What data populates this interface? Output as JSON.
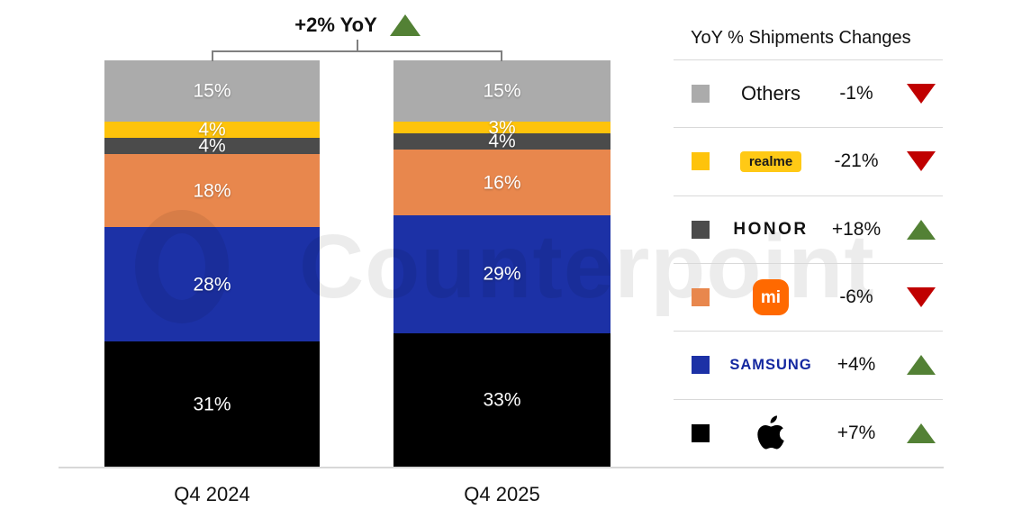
{
  "watermark": {
    "text": "Counterpoint"
  },
  "title": {
    "text": "+2% YoY",
    "direction": "up"
  },
  "colors": {
    "up": "#538135",
    "down": "#C00000",
    "divider": "#D9D9D9",
    "bracket": "#808080"
  },
  "legend": {
    "header": "YoY % Shipments Changes",
    "items": [
      {
        "name": "Others",
        "change": "-1%",
        "direction": "down",
        "swatch": "#ABABAB"
      },
      {
        "name": "realme",
        "change": "-21%",
        "direction": "down",
        "swatch": "#FEC30B",
        "badge_bg": "#FFC915"
      },
      {
        "name": "HONOR",
        "change": "+18%",
        "direction": "up",
        "swatch": "#4B4B4B"
      },
      {
        "name": "Xiaomi",
        "change": "-6%",
        "direction": "down",
        "swatch": "#E8874D",
        "logo_text": "mi",
        "logo_bg": "#FF6900"
      },
      {
        "name": "SAMSUNG",
        "change": "+4%",
        "direction": "up",
        "swatch": "#1C31A6",
        "wordmark_color": "#1428A0"
      },
      {
        "name": "Apple",
        "change": "+7%",
        "direction": "up",
        "swatch": "#000000"
      }
    ]
  },
  "chart_data": {
    "type": "bar",
    "subtype": "100%-stacked-column",
    "title": "+2% YoY",
    "categories": [
      "Q4 2024",
      "Q4 2025"
    ],
    "series": [
      {
        "name": "Apple",
        "color": "#000000",
        "values": [
          31,
          33
        ]
      },
      {
        "name": "Samsung",
        "color": "#1C31A6",
        "values": [
          28,
          29
        ]
      },
      {
        "name": "Xiaomi",
        "color": "#E8874D",
        "values": [
          18,
          16
        ]
      },
      {
        "name": "HONOR",
        "color": "#4B4B4B",
        "values": [
          4,
          4
        ]
      },
      {
        "name": "realme",
        "color": "#FEC30B",
        "values": [
          4,
          3
        ]
      },
      {
        "name": "Others",
        "color": "#ABABAB",
        "values": [
          15,
          15
        ]
      }
    ],
    "value_suffix": "%",
    "ylim": [
      0,
      100
    ],
    "legend_position": "right",
    "legend_title": "YoY % Shipments Changes",
    "yoy_changes": {
      "total": "+2%",
      "Others": "-1%",
      "realme": "-21%",
      "HONOR": "+18%",
      "Xiaomi": "-6%",
      "Samsung": "+4%",
      "Apple": "+7%"
    }
  }
}
